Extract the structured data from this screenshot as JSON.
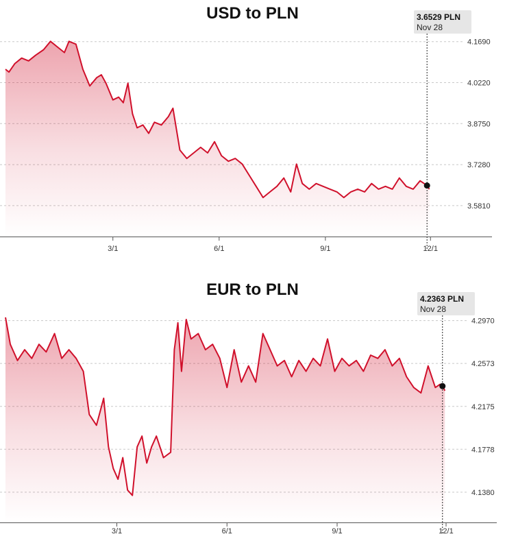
{
  "chart_data": [
    {
      "type": "area",
      "title": "USD to PLN",
      "color": "#d0102b",
      "yticks": [
        "4.1690",
        "4.0220",
        "3.8750",
        "3.7280",
        "3.5810"
      ],
      "ylim": [
        3.47,
        4.22
      ],
      "x_domain": [
        "2022-11-28",
        "2023-12-05"
      ],
      "xticks": [
        {
          "label": "3/1",
          "date": "2023-03-01"
        },
        {
          "label": "6/1",
          "date": "2023-06-01"
        },
        {
          "label": "9/1",
          "date": "2023-09-01"
        },
        {
          "label": "12/1",
          "date": "2023-12-01"
        }
      ],
      "tooltip": {
        "value": "3.6529 PLN",
        "date": "Nov 28"
      },
      "marker": {
        "date": "2023-11-28",
        "value": 3.6529
      },
      "series": [
        {
          "points": [
            [
              "2022-11-28",
              4.07
            ],
            [
              "2022-12-01",
              4.06
            ],
            [
              "2022-12-06",
              4.09
            ],
            [
              "2022-12-12",
              4.11
            ],
            [
              "2022-12-18",
              4.1
            ],
            [
              "2022-12-24",
              4.12
            ],
            [
              "2022-12-31",
              4.14
            ],
            [
              "2023-01-06",
              4.17
            ],
            [
              "2023-01-12",
              4.15
            ],
            [
              "2023-01-18",
              4.13
            ],
            [
              "2023-01-22",
              4.17
            ],
            [
              "2023-01-28",
              4.16
            ],
            [
              "2023-02-03",
              4.07
            ],
            [
              "2023-02-09",
              4.01
            ],
            [
              "2023-02-15",
              4.04
            ],
            [
              "2023-02-19",
              4.05
            ],
            [
              "2023-02-23",
              4.02
            ],
            [
              "2023-03-01",
              3.96
            ],
            [
              "2023-03-06",
              3.97
            ],
            [
              "2023-03-10",
              3.95
            ],
            [
              "2023-03-14",
              4.02
            ],
            [
              "2023-03-18",
              3.91
            ],
            [
              "2023-03-22",
              3.86
            ],
            [
              "2023-03-27",
              3.87
            ],
            [
              "2023-04-01",
              3.84
            ],
            [
              "2023-04-06",
              3.88
            ],
            [
              "2023-04-12",
              3.87
            ],
            [
              "2023-04-18",
              3.9
            ],
            [
              "2023-04-22",
              3.93
            ],
            [
              "2023-04-28",
              3.78
            ],
            [
              "2023-05-04",
              3.75
            ],
            [
              "2023-05-10",
              3.77
            ],
            [
              "2023-05-16",
              3.79
            ],
            [
              "2023-05-22",
              3.77
            ],
            [
              "2023-05-28",
              3.81
            ],
            [
              "2023-06-03",
              3.76
            ],
            [
              "2023-06-09",
              3.74
            ],
            [
              "2023-06-15",
              3.75
            ],
            [
              "2023-06-21",
              3.73
            ],
            [
              "2023-06-27",
              3.69
            ],
            [
              "2023-07-03",
              3.65
            ],
            [
              "2023-07-09",
              3.61
            ],
            [
              "2023-07-15",
              3.63
            ],
            [
              "2023-07-21",
              3.65
            ],
            [
              "2023-07-27",
              3.68
            ],
            [
              "2023-08-02",
              3.63
            ],
            [
              "2023-08-07",
              3.73
            ],
            [
              "2023-08-12",
              3.66
            ],
            [
              "2023-08-18",
              3.64
            ],
            [
              "2023-08-24",
              3.66
            ],
            [
              "2023-08-30",
              3.65
            ],
            [
              "2023-09-05",
              3.64
            ],
            [
              "2023-09-11",
              3.63
            ],
            [
              "2023-09-17",
              3.61
            ],
            [
              "2023-09-23",
              3.63
            ],
            [
              "2023-09-29",
              3.64
            ],
            [
              "2023-10-05",
              3.63
            ],
            [
              "2023-10-11",
              3.66
            ],
            [
              "2023-10-17",
              3.64
            ],
            [
              "2023-10-23",
              3.65
            ],
            [
              "2023-10-29",
              3.64
            ],
            [
              "2023-11-04",
              3.68
            ],
            [
              "2023-11-10",
              3.65
            ],
            [
              "2023-11-16",
              3.64
            ],
            [
              "2023-11-22",
              3.67
            ],
            [
              "2023-11-28",
              3.6529
            ],
            [
              "2023-11-30",
              3.64
            ]
          ]
        }
      ]
    },
    {
      "type": "area",
      "title": "EUR to PLN",
      "color": "#d0102b",
      "yticks": [
        "4.2970",
        "4.2573",
        "4.2175",
        "4.1778",
        "4.1380"
      ],
      "ylim": [
        4.11,
        4.305
      ],
      "x_domain": [
        "2022-11-28",
        "2023-12-05"
      ],
      "xticks": [
        {
          "label": "3/1",
          "date": "2023-03-01"
        },
        {
          "label": "6/1",
          "date": "2023-06-01"
        },
        {
          "label": "9/1",
          "date": "2023-09-01"
        },
        {
          "label": "12/1",
          "date": "2023-12-01"
        }
      ],
      "tooltip": {
        "value": "4.2363 PLN",
        "date": "Nov 28"
      },
      "marker": {
        "date": "2023-11-28",
        "value": 4.2363
      },
      "series": [
        {
          "points": [
            [
              "2022-11-28",
              4.3
            ],
            [
              "2022-12-02",
              4.275
            ],
            [
              "2022-12-08",
              4.26
            ],
            [
              "2022-12-14",
              4.27
            ],
            [
              "2022-12-20",
              4.262
            ],
            [
              "2022-12-26",
              4.275
            ],
            [
              "2023-01-01",
              4.268
            ],
            [
              "2023-01-08",
              4.285
            ],
            [
              "2023-01-14",
              4.262
            ],
            [
              "2023-01-20",
              4.27
            ],
            [
              "2023-01-26",
              4.262
            ],
            [
              "2023-02-01",
              4.25
            ],
            [
              "2023-02-06",
              4.21
            ],
            [
              "2023-02-12",
              4.2
            ],
            [
              "2023-02-18",
              4.225
            ],
            [
              "2023-02-22",
              4.18
            ],
            [
              "2023-02-26",
              4.16
            ],
            [
              "2023-03-02",
              4.15
            ],
            [
              "2023-03-06",
              4.17
            ],
            [
              "2023-03-10",
              4.14
            ],
            [
              "2023-03-14",
              4.135
            ],
            [
              "2023-03-18",
              4.18
            ],
            [
              "2023-03-22",
              4.19
            ],
            [
              "2023-03-26",
              4.165
            ],
            [
              "2023-03-30",
              4.18
            ],
            [
              "2023-04-03",
              4.19
            ],
            [
              "2023-04-09",
              4.17
            ],
            [
              "2023-04-15",
              4.175
            ],
            [
              "2023-04-18",
              4.27
            ],
            [
              "2023-04-21",
              4.295
            ],
            [
              "2023-04-24",
              4.25
            ],
            [
              "2023-04-28",
              4.298
            ],
            [
              "2023-05-02",
              4.28
            ],
            [
              "2023-05-08",
              4.285
            ],
            [
              "2023-05-14",
              4.27
            ],
            [
              "2023-05-20",
              4.275
            ],
            [
              "2023-05-26",
              4.262
            ],
            [
              "2023-06-01",
              4.235
            ],
            [
              "2023-06-07",
              4.27
            ],
            [
              "2023-06-13",
              4.24
            ],
            [
              "2023-06-19",
              4.255
            ],
            [
              "2023-06-25",
              4.24
            ],
            [
              "2023-07-01",
              4.285
            ],
            [
              "2023-07-07",
              4.27
            ],
            [
              "2023-07-13",
              4.255
            ],
            [
              "2023-07-19",
              4.26
            ],
            [
              "2023-07-25",
              4.245
            ],
            [
              "2023-07-31",
              4.26
            ],
            [
              "2023-08-06",
              4.25
            ],
            [
              "2023-08-12",
              4.262
            ],
            [
              "2023-08-18",
              4.255
            ],
            [
              "2023-08-24",
              4.28
            ],
            [
              "2023-08-30",
              4.25
            ],
            [
              "2023-09-05",
              4.262
            ],
            [
              "2023-09-11",
              4.255
            ],
            [
              "2023-09-17",
              4.26
            ],
            [
              "2023-09-23",
              4.25
            ],
            [
              "2023-09-29",
              4.265
            ],
            [
              "2023-10-05",
              4.262
            ],
            [
              "2023-10-11",
              4.27
            ],
            [
              "2023-10-17",
              4.255
            ],
            [
              "2023-10-23",
              4.262
            ],
            [
              "2023-10-29",
              4.245
            ],
            [
              "2023-11-04",
              4.235
            ],
            [
              "2023-11-10",
              4.23
            ],
            [
              "2023-11-16",
              4.255
            ],
            [
              "2023-11-22",
              4.235
            ],
            [
              "2023-11-26",
              4.238
            ],
            [
              "2023-11-28",
              4.2363
            ],
            [
              "2023-11-30",
              4.232
            ]
          ]
        }
      ]
    }
  ]
}
